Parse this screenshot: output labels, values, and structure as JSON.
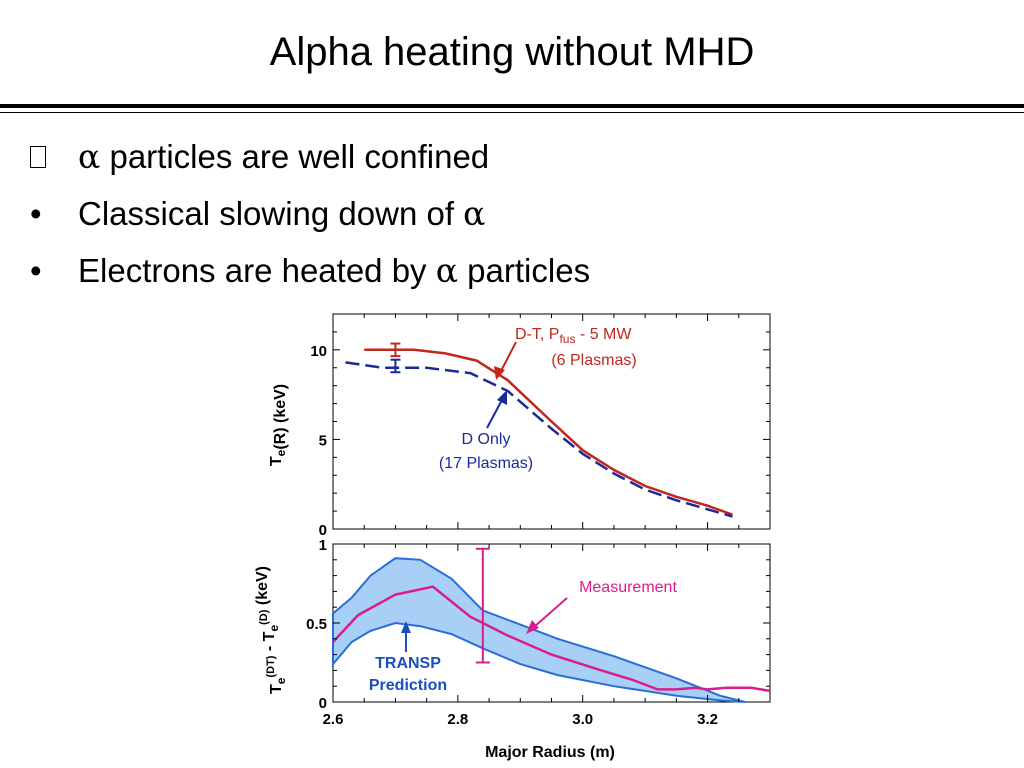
{
  "slide": {
    "title": "Alpha heating without MHD",
    "bullets": [
      {
        "marker": "box-glyph",
        "pre": "",
        "greek": "α",
        "post": " particles are well confined"
      },
      {
        "marker": "•",
        "pre": "Classical slowing down of ",
        "greek": "α",
        "post": ""
      },
      {
        "marker": "•",
        "pre": "Electrons are heated by ",
        "greek": "α",
        "post": " particles"
      }
    ]
  },
  "chart_data": [
    {
      "type": "line",
      "ylabel": "Te(R) (keV)",
      "ylim": [
        0,
        12
      ],
      "xlim": [
        2.6,
        3.3
      ],
      "yticks": [
        0,
        5,
        10
      ],
      "series": [
        {
          "name": "D-T, Pfus - 5 MW (6 Plasmas)",
          "color": "#c0281c",
          "style": "solid",
          "x": [
            2.65,
            2.73,
            2.78,
            2.83,
            2.88,
            2.95,
            3.0,
            3.05,
            3.1,
            3.15,
            3.2,
            3.24
          ],
          "y": [
            10.0,
            10.0,
            9.8,
            9.4,
            8.3,
            6.0,
            4.4,
            3.3,
            2.4,
            1.8,
            1.3,
            0.8
          ]
        },
        {
          "name": "D Only (17 Plasmas)",
          "color": "#1a2a9c",
          "style": "dashed",
          "x": [
            2.62,
            2.68,
            2.75,
            2.82,
            2.88,
            2.95,
            3.0,
            3.05,
            3.1,
            3.15,
            3.2,
            3.24
          ],
          "y": [
            9.3,
            9.0,
            9.0,
            8.7,
            7.7,
            5.6,
            4.2,
            3.1,
            2.2,
            1.6,
            1.1,
            0.7
          ]
        }
      ],
      "errorbars": [
        {
          "x": 2.7,
          "y": 10.0,
          "err": 0.35,
          "color": "#c0281c"
        },
        {
          "x": 2.7,
          "y": 9.1,
          "err": 0.35,
          "color": "#1a2a9c"
        }
      ],
      "annotations": [
        {
          "text": "D-T, P",
          "sub": "fus",
          "rest": " - 5 MW",
          "line2": "(6 Plasmas)",
          "color": "#c0281c"
        },
        {
          "text": "D Only",
          "line2": "(17 Plasmas)",
          "color": "#1a2a9c"
        }
      ]
    },
    {
      "type": "area",
      "ylabel": "Te(DT) - Te(D) (keV)",
      "xlabel": "Major Radius (m)",
      "xlim": [
        2.6,
        3.3
      ],
      "ylim": [
        0,
        1
      ],
      "xticks": [
        2.6,
        2.8,
        3.0,
        3.2
      ],
      "xtick_labels": [
        "2.6",
        "2.8",
        "3.0",
        "3.2"
      ],
      "yticks": [
        0,
        0.5,
        1
      ],
      "ytick_labels": [
        "0",
        "0.5",
        "1"
      ],
      "series": [
        {
          "name": "TRANSP Prediction",
          "color": "#2a6dd8",
          "fill": "#a8cff5",
          "x": [
            2.6,
            2.63,
            2.66,
            2.7,
            2.74,
            2.79,
            2.84,
            2.9,
            2.96,
            3.05,
            3.15,
            3.22,
            3.26
          ],
          "upper": [
            0.56,
            0.66,
            0.8,
            0.91,
            0.9,
            0.78,
            0.58,
            0.49,
            0.4,
            0.29,
            0.15,
            0.04,
            0.0
          ],
          "lower": [
            0.24,
            0.38,
            0.45,
            0.5,
            0.48,
            0.43,
            0.34,
            0.24,
            0.17,
            0.1,
            0.04,
            0.01,
            0.0
          ]
        },
        {
          "name": "Measurement",
          "color": "#d81e8c",
          "x": [
            2.6,
            2.64,
            2.7,
            2.76,
            2.82,
            2.88,
            2.95,
            3.03,
            3.08,
            3.12,
            3.15,
            3.18,
            3.2,
            3.23,
            3.27,
            3.3
          ],
          "y": [
            0.38,
            0.55,
            0.68,
            0.73,
            0.54,
            0.42,
            0.3,
            0.2,
            0.14,
            0.08,
            0.08,
            0.09,
            0.08,
            0.09,
            0.09,
            0.07
          ]
        }
      ],
      "errorbars": [
        {
          "x": 2.84,
          "y": 0.61,
          "err": 0.36,
          "color": "#d81e8c"
        }
      ],
      "annotations": [
        {
          "text": "Measurement",
          "color": "#d81e8c"
        },
        {
          "text": "TRANSP",
          "line2": "Prediction",
          "color": "#1a4fc0"
        }
      ]
    }
  ]
}
